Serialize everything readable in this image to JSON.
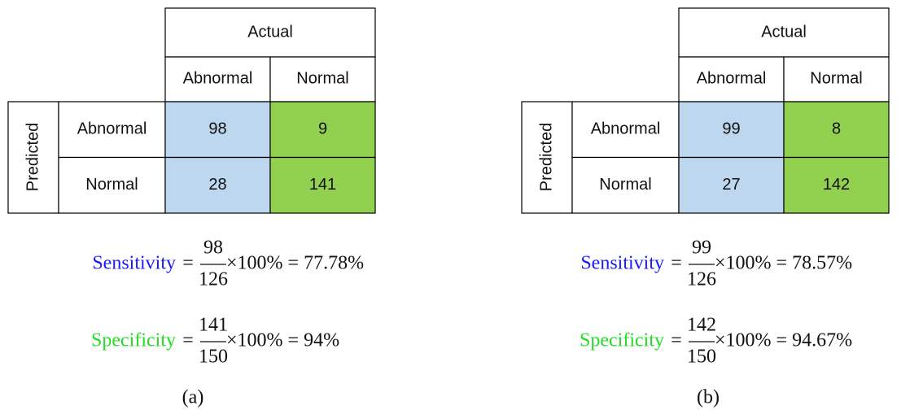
{
  "panels": [
    {
      "actual": "Actual",
      "columns": [
        "Abnormal",
        "Normal"
      ],
      "predicted": "Predicted",
      "rows": [
        {
          "label": "Abnormal",
          "cells": [
            98,
            9
          ]
        },
        {
          "label": "Normal",
          "cells": [
            28,
            141
          ]
        }
      ],
      "formulas": [
        {
          "label": "Sensitivity",
          "equals": "=",
          "numerator": 98,
          "denominator": 126,
          "rest": "×100% = 77.78%"
        },
        {
          "label": "Specificity",
          "equals": "=",
          "numerator": 141,
          "denominator": 150,
          "rest": "×100% = 94%"
        }
      ],
      "caption": "(a)"
    },
    {
      "actual": "Actual",
      "columns": [
        "Abnormal",
        "Normal"
      ],
      "predicted": "Predicted",
      "rows": [
        {
          "label": "Abnormal",
          "cells": [
            99,
            8
          ]
        },
        {
          "label": "Normal",
          "cells": [
            27,
            142
          ]
        }
      ],
      "formulas": [
        {
          "label": "Sensitivity",
          "equals": "=",
          "numerator": 99,
          "denominator": 126,
          "rest": "×100% = 78.57%"
        },
        {
          "label": "Specificity",
          "equals": "=",
          "numerator": 142,
          "denominator": 150,
          "rest": "×100% = 94.67%"
        }
      ],
      "caption": "(b)"
    }
  ]
}
